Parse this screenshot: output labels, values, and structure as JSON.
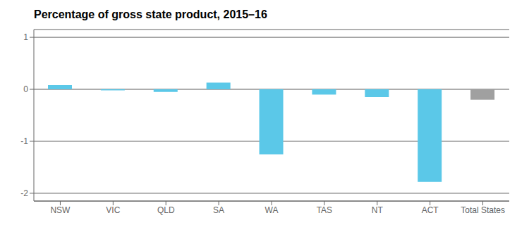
{
  "chart_data": {
    "type": "bar",
    "title": "Percentage of gross state product, 2015–16",
    "categories": [
      "NSW",
      "VIC",
      "QLD",
      "SA",
      "WA",
      "TAS",
      "NT",
      "ACT",
      "Total States"
    ],
    "values": [
      0.08,
      -0.02,
      -0.05,
      0.13,
      -1.25,
      -0.1,
      -0.15,
      -1.78,
      -0.2
    ],
    "colors": [
      "#5bc8e8",
      "#5bc8e8",
      "#5bc8e8",
      "#5bc8e8",
      "#5bc8e8",
      "#5bc8e8",
      "#5bc8e8",
      "#5bc8e8",
      "#a0a0a0"
    ],
    "ylim": [
      -2.15,
      1.15
    ],
    "yticks": [
      -2,
      -1,
      0,
      1
    ],
    "grid": true
  }
}
